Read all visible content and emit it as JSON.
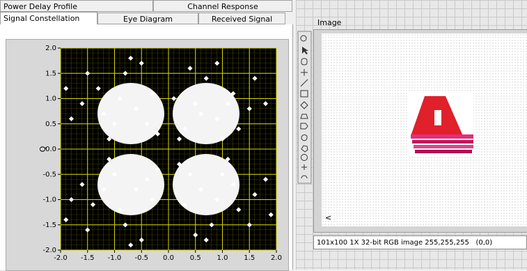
{
  "tabs": {
    "row1": [
      "Power Delay Profile",
      "Channel Response"
    ],
    "row2": [
      "Signal Constellation",
      "Eye Diagram",
      "Received Signal"
    ]
  },
  "chart_data": {
    "type": "scatter",
    "ylabel": "Q",
    "x": [
      0.5,
      0.9,
      1.2,
      0.3,
      0.7,
      1.5,
      0.1,
      1.0,
      1.6,
      0.4,
      1.3,
      0.6,
      1.8,
      0.2,
      0.9,
      1.1,
      -0.6,
      -1.0,
      -1.3,
      -0.3,
      -0.8,
      -1.6,
      -0.2,
      -1.1,
      -1.5,
      -0.5,
      -1.8,
      -0.9,
      -1.2,
      -0.4,
      -0.7,
      -1.9,
      -0.6,
      -1.0,
      -1.4,
      -0.3,
      -0.8,
      -1.6,
      -0.2,
      -1.1,
      -1.5,
      -0.5,
      -1.8,
      -0.9,
      -1.2,
      -0.4,
      -0.7,
      -1.9,
      0.6,
      1.0,
      1.3,
      0.3,
      0.8,
      1.6,
      0.2,
      1.1,
      1.5,
      0.5,
      1.8,
      0.9,
      1.2,
      0.4,
      0.7,
      1.9
    ],
    "y": [
      0.9,
      0.6,
      1.1,
      0.4,
      1.4,
      0.8,
      1.0,
      0.2,
      1.4,
      1.6,
      0.4,
      0.7,
      0.9,
      0.2,
      1.7,
      0.9,
      0.8,
      0.5,
      1.2,
      1.1,
      1.5,
      0.9,
      0.3,
      0.2,
      1.5,
      1.7,
      0.6,
      1.0,
      0.7,
      0.5,
      1.8,
      1.2,
      -0.8,
      -0.5,
      -1.1,
      -1.0,
      -1.5,
      -0.7,
      -0.4,
      -0.2,
      -1.6,
      -1.8,
      -1.0,
      -1.2,
      -0.8,
      -0.6,
      -1.9,
      -1.4,
      -0.8,
      -0.5,
      -1.2,
      -1.1,
      -1.5,
      -0.9,
      -0.3,
      -0.2,
      -1.5,
      -1.7,
      -0.6,
      -1.0,
      -0.7,
      -0.5,
      -1.8,
      -1.3
    ],
    "color": "#ffffff",
    "xlim": [
      -2,
      2
    ],
    "ylim": [
      -2,
      2
    ],
    "xticks": [
      {
        "value": -2,
        "label": "-2.0"
      },
      -1.5,
      {
        "value": -1,
        "label": "-1.0"
      },
      -0.5,
      {
        "value": 0,
        "label": "0.0"
      },
      0.5,
      {
        "value": 1,
        "label": "1.0"
      },
      1.5,
      {
        "value": 2,
        "label": "2.0"
      }
    ],
    "yticks": [
      {
        "value": -2,
        "label": "-2.0"
      },
      -1.5,
      {
        "value": -1,
        "label": "-1.0"
      },
      -0.5,
      {
        "value": 0,
        "label": "0.0"
      },
      0.5,
      {
        "value": 1,
        "label": "1.0"
      },
      1.5,
      {
        "value": 2,
        "label": "2.0"
      }
    ],
    "grid": true
  },
  "image_panel": {
    "label": "Image",
    "scroll_left": "<",
    "status": "101x100 1X 32-bit RGB image 255,255,255",
    "coords": "(0,0)"
  }
}
